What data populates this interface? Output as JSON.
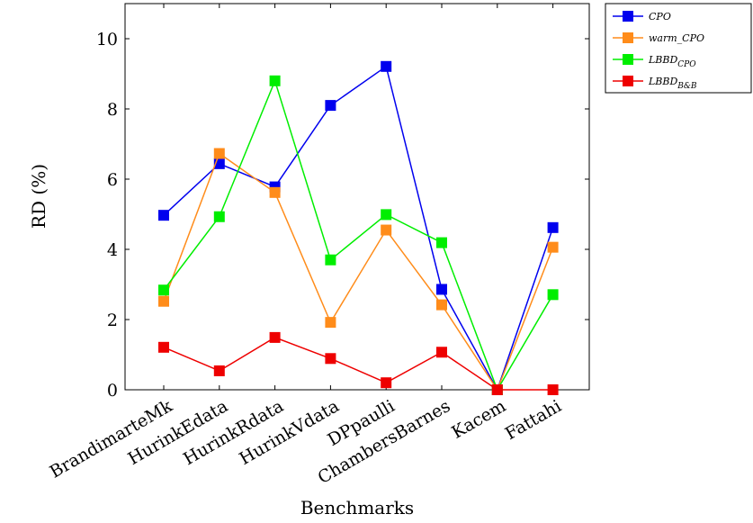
{
  "chart_data": {
    "type": "line",
    "title": "",
    "xlabel": "Benchmarks",
    "ylabel": "RD (%)",
    "ylim": [
      0,
      11
    ],
    "yticks": [
      0,
      2,
      4,
      6,
      8,
      10
    ],
    "categories": [
      "BrandimarteMk",
      "HurinkEdata",
      "HurinkRdata",
      "HurinkVdata",
      "DPpaulli",
      "ChambersBarnes",
      "Kacem",
      "Fattahi"
    ],
    "legend_position": "outside-top-right",
    "grid": false,
    "series": [
      {
        "name": "CPO",
        "sub": "",
        "color": "#0000ee",
        "values": [
          4.97,
          6.44,
          5.78,
          8.1,
          9.21,
          2.86,
          0.0,
          4.62
        ]
      },
      {
        "name": "warm_CPO",
        "sub": "",
        "color": "#ff8c1a",
        "values": [
          2.52,
          6.73,
          5.62,
          1.92,
          4.55,
          2.42,
          0.0,
          4.06
        ]
      },
      {
        "name": "LBBD",
        "sub": "CPO",
        "color": "#00ee00",
        "values": [
          2.84,
          4.93,
          8.8,
          3.7,
          4.99,
          4.19,
          0.0,
          2.71
        ]
      },
      {
        "name": "LBBD",
        "sub": "B&B",
        "color": "#ee0000",
        "values": [
          1.21,
          0.54,
          1.49,
          0.89,
          0.2,
          1.07,
          0.0,
          0.0
        ]
      }
    ]
  }
}
